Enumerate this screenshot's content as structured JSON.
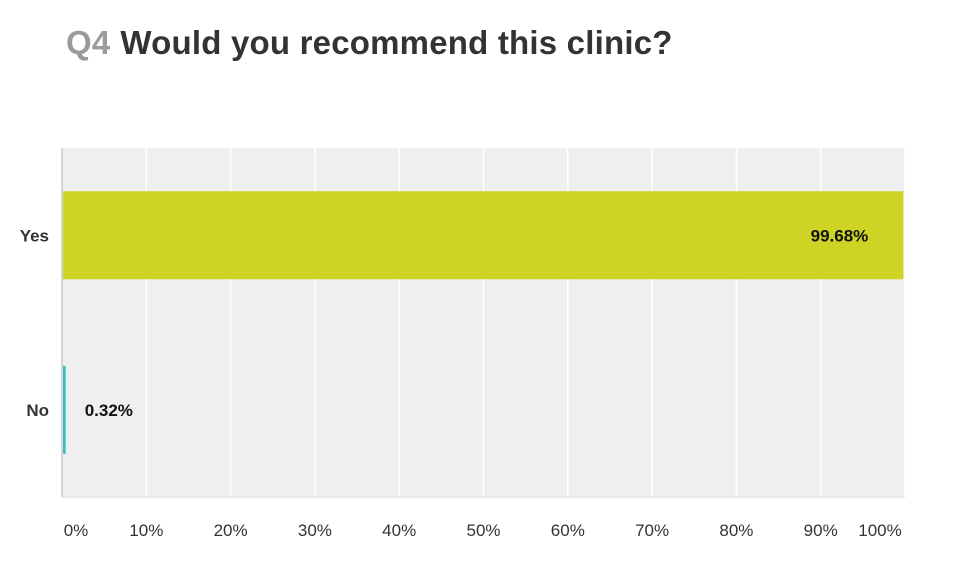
{
  "question": {
    "number": "Q4",
    "text": "Would you recommend this clinic?"
  },
  "chart_data": {
    "type": "bar",
    "orientation": "horizontal",
    "categories": [
      "Yes",
      "No"
    ],
    "values": [
      99.68,
      0.32
    ],
    "value_labels": [
      "99.68%",
      "0.32%"
    ],
    "colors": [
      "#cdd424",
      "#3bbdc3"
    ],
    "xlim": [
      0,
      100
    ],
    "x_ticks": [
      0,
      10,
      20,
      30,
      40,
      50,
      60,
      70,
      80,
      90,
      100
    ],
    "x_tick_labels": [
      "0%",
      "10%",
      "20%",
      "30%",
      "40%",
      "50%",
      "60%",
      "70%",
      "80%",
      "90%",
      "100%"
    ],
    "grid": true,
    "plot_background": "#efefef",
    "title": "",
    "xlabel": "",
    "ylabel": ""
  }
}
